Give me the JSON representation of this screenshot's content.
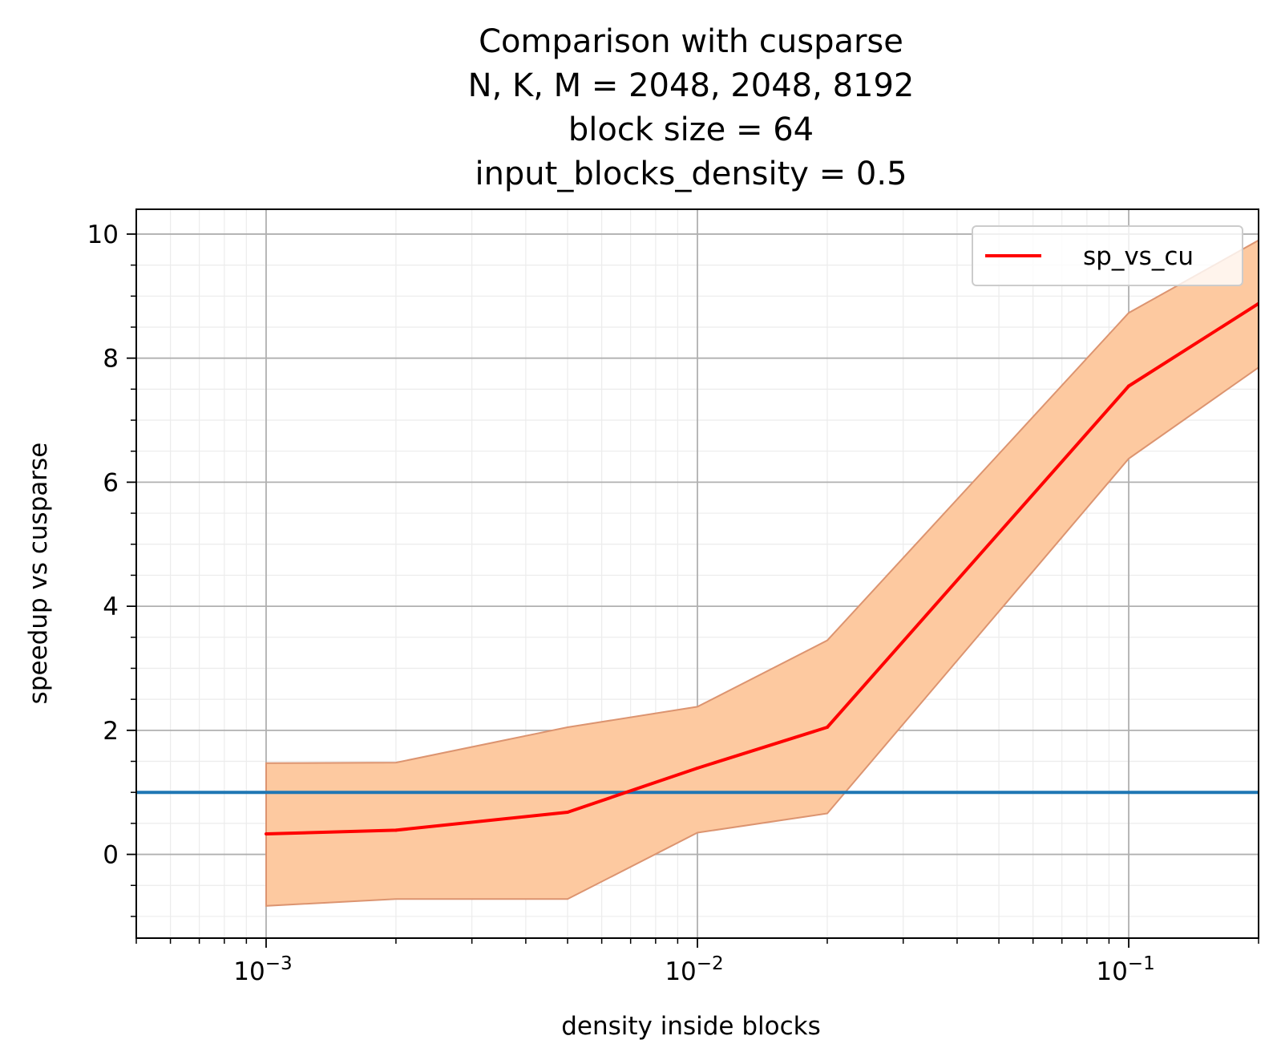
{
  "chart_data": {
    "type": "line",
    "title": [
      "Comparison with cusparse",
      "N, K, M = 2048, 2048, 8192",
      "block size = 64",
      "input_blocks_density = 0.5"
    ],
    "xlabel": "density inside blocks",
    "ylabel": "speedup vs cusparse",
    "xscale": "log",
    "xlim": [
      0.0005,
      0.2
    ],
    "ylim": [
      -1.35,
      10.4
    ],
    "x_ticks": [
      {
        "value": 0.001,
        "base": "10",
        "exp": "−3"
      },
      {
        "value": 0.01,
        "base": "10",
        "exp": "−2"
      },
      {
        "value": 0.1,
        "base": "10",
        "exp": "−1"
      }
    ],
    "y_ticks": [
      0,
      2,
      4,
      6,
      8,
      10
    ],
    "grid": true,
    "legend": {
      "position": "upper right",
      "entries": [
        "sp_vs_cu"
      ]
    },
    "series": [
      {
        "name": "sp_vs_cu",
        "color": "#ff0000",
        "x": [
          0.001,
          0.002,
          0.005,
          0.01,
          0.02,
          0.1,
          0.2
        ],
        "y": [
          0.33,
          0.39,
          0.68,
          1.39,
          2.05,
          7.55,
          8.88
        ]
      }
    ],
    "band": {
      "color": "#fdc9a0",
      "edge_color": "#dc9470",
      "x": [
        0.001,
        0.002,
        0.005,
        0.01,
        0.02,
        0.1,
        0.2
      ],
      "upper": [
        1.47,
        1.48,
        2.05,
        2.38,
        3.45,
        8.73,
        9.9
      ],
      "lower": [
        -0.83,
        -0.72,
        -0.72,
        0.35,
        0.66,
        6.38,
        7.85
      ]
    },
    "reference_line": {
      "y": 1.0,
      "color": "#1f77b4"
    }
  }
}
